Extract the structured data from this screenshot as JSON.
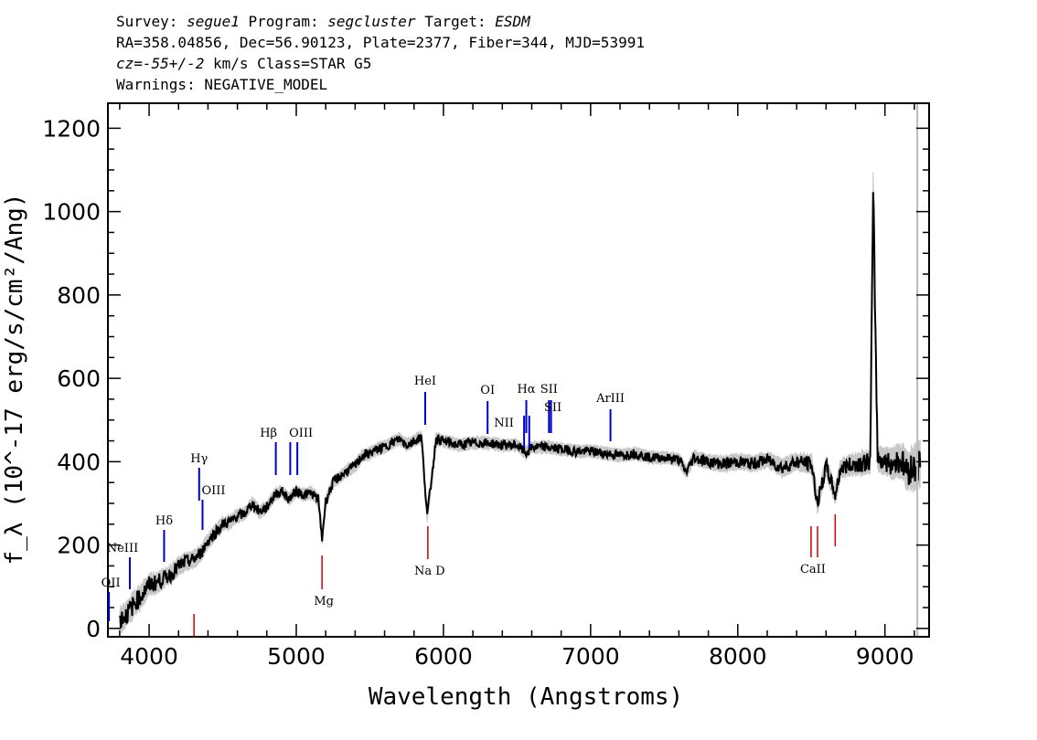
{
  "header": {
    "survey_label": "Survey:",
    "survey": "segue1",
    "program_label": "Program:",
    "program": "segcluster",
    "target_label": "Target:",
    "target": "ESDM",
    "line2": "RA=358.04856, Dec=56.90123, Plate=2377, Fiber=344, MJD=53991",
    "cz_label": "cz=",
    "cz_value": "-55+/-2",
    "cz_rest": " km/s Class=STAR G5",
    "warnings": "Warnings: NEGATIVE_MODEL"
  },
  "colors": {
    "flux": "#000000",
    "error": "#c8c8c8",
    "emission": "#0000cc",
    "absorption": "#cc0000"
  },
  "chart_data": {
    "type": "line",
    "title": "",
    "xlabel": "Wavelength (Angstroms)",
    "ylabel": "f_λ (10^-17 erg/s/cm²/Ang)",
    "xlim": [
      3720,
      9300
    ],
    "ylim": [
      -20,
      1260
    ],
    "x_ticks": [
      4000,
      5000,
      6000,
      7000,
      8000,
      9000
    ],
    "y_ticks": [
      0,
      200,
      400,
      600,
      800,
      1000,
      1200
    ],
    "spectrum": {
      "wavelength": [
        3800,
        3850,
        3900,
        3950,
        4000,
        4050,
        4100,
        4150,
        4200,
        4250,
        4300,
        4350,
        4400,
        4450,
        4500,
        4550,
        4600,
        4650,
        4700,
        4750,
        4800,
        4850,
        4900,
        4950,
        5000,
        5050,
        5100,
        5150,
        5175,
        5200,
        5250,
        5300,
        5350,
        5400,
        5450,
        5500,
        5550,
        5600,
        5650,
        5700,
        5750,
        5800,
        5850,
        5890,
        5950,
        6000,
        6100,
        6200,
        6300,
        6400,
        6500,
        6563,
        6600,
        6700,
        6800,
        6900,
        7000,
        7100,
        7200,
        7300,
        7400,
        7500,
        7600,
        7650,
        7700,
        7800,
        7900,
        8000,
        8100,
        8200,
        8300,
        8400,
        8500,
        8542,
        8600,
        8662,
        8700,
        8800,
        8900,
        8920,
        8950,
        9000,
        9050,
        9100,
        9150,
        9200,
        9240
      ],
      "flux": [
        20,
        35,
        60,
        80,
        105,
        110,
        120,
        130,
        150,
        160,
        165,
        180,
        210,
        230,
        250,
        255,
        270,
        275,
        300,
        280,
        290,
        320,
        330,
        310,
        330,
        320,
        325,
        310,
        215,
        305,
        350,
        365,
        380,
        390,
        415,
        420,
        430,
        435,
        445,
        455,
        440,
        450,
        460,
        270,
        455,
        450,
        440,
        445,
        445,
        440,
        440,
        420,
        435,
        435,
        430,
        425,
        425,
        420,
        415,
        420,
        410,
        410,
        405,
        375,
        410,
        400,
        395,
        400,
        395,
        405,
        385,
        400,
        395,
        300,
        390,
        320,
        385,
        395,
        400,
        1040,
        410,
        400,
        395,
        405,
        380,
        385,
        395
      ],
      "error": [
        30,
        30,
        30,
        28,
        25,
        25,
        22,
        22,
        20,
        20,
        20,
        18,
        18,
        18,
        16,
        16,
        16,
        15,
        15,
        15,
        14,
        14,
        14,
        14,
        14,
        14,
        14,
        14,
        14,
        14,
        14,
        14,
        14,
        14,
        14,
        14,
        14,
        14,
        14,
        14,
        14,
        14,
        14,
        14,
        14,
        14,
        14,
        14,
        14,
        14,
        14,
        14,
        14,
        14,
        14,
        14,
        14,
        14,
        14,
        14,
        14,
        14,
        14,
        14,
        16,
        16,
        18,
        18,
        18,
        18,
        20,
        20,
        22,
        22,
        22,
        22,
        22,
        25,
        30,
        70,
        30,
        30,
        35,
        40,
        45,
        50,
        50
      ]
    },
    "emission_lines": [
      {
        "label": "OII",
        "wavelength": 3727
      },
      {
        "label": "NeIII",
        "wavelength": 3869
      },
      {
        "label": "Hδ",
        "wavelength": 4102
      },
      {
        "label": "Hγ",
        "wavelength": 4340
      },
      {
        "label": "OIII",
        "wavelength": 4363
      },
      {
        "label": "Hβ",
        "wavelength": 4861
      },
      {
        "label": "OIII",
        "wavelength": 4959
      },
      {
        "label": "OIII",
        "wavelength": 5007
      },
      {
        "label": "HeI",
        "wavelength": 5876
      },
      {
        "label": "OI",
        "wavelength": 6300
      },
      {
        "label": "NII",
        "wavelength": 6548
      },
      {
        "label": "Hα",
        "wavelength": 6563
      },
      {
        "label": "NII",
        "wavelength": 6583
      },
      {
        "label": "SII",
        "wavelength": 6717
      },
      {
        "label": "SII",
        "wavelength": 6731
      },
      {
        "label": "ArIII",
        "wavelength": 7135
      }
    ],
    "absorption_lines": [
      {
        "label": "",
        "wavelength": 4305
      },
      {
        "label": "Mg",
        "wavelength": 5175
      },
      {
        "label": "Na D",
        "wavelength": 5894
      },
      {
        "label": "CaII",
        "wavelength": 8498
      },
      {
        "label": "CaII",
        "wavelength": 8542
      },
      {
        "label": "CaII",
        "wavelength": 8662
      }
    ]
  }
}
